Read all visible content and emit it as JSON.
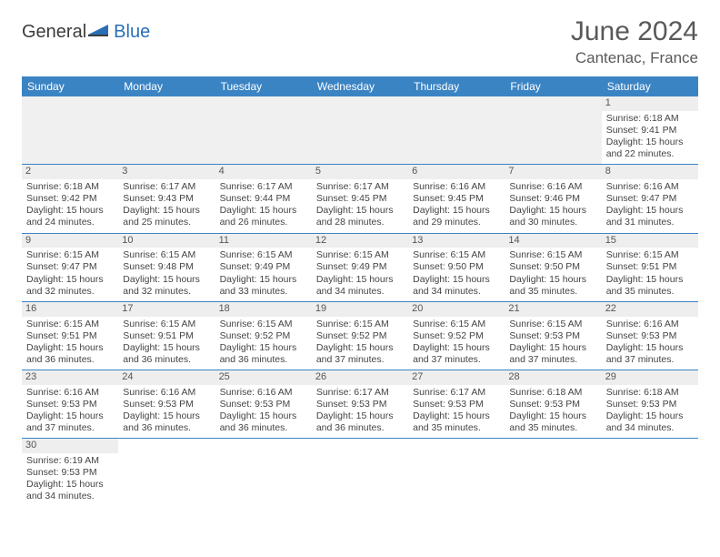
{
  "logo": {
    "text1": "General",
    "text2": "Blue"
  },
  "title": "June 2024",
  "location": "Cantenac, France",
  "colors": {
    "header_bg": "#3b84c4",
    "header_text": "#ffffff",
    "daynum_bg": "#eeeeee",
    "border": "#3b84c4",
    "title_color": "#595959",
    "logo_blue": "#2a6fb5"
  },
  "weekdays": [
    "Sunday",
    "Monday",
    "Tuesday",
    "Wednesday",
    "Thursday",
    "Friday",
    "Saturday"
  ],
  "days": {
    "1": {
      "sunrise": "6:18 AM",
      "sunset": "9:41 PM",
      "daylight": "15 hours and 22 minutes."
    },
    "2": {
      "sunrise": "6:18 AM",
      "sunset": "9:42 PM",
      "daylight": "15 hours and 24 minutes."
    },
    "3": {
      "sunrise": "6:17 AM",
      "sunset": "9:43 PM",
      "daylight": "15 hours and 25 minutes."
    },
    "4": {
      "sunrise": "6:17 AM",
      "sunset": "9:44 PM",
      "daylight": "15 hours and 26 minutes."
    },
    "5": {
      "sunrise": "6:17 AM",
      "sunset": "9:45 PM",
      "daylight": "15 hours and 28 minutes."
    },
    "6": {
      "sunrise": "6:16 AM",
      "sunset": "9:45 PM",
      "daylight": "15 hours and 29 minutes."
    },
    "7": {
      "sunrise": "6:16 AM",
      "sunset": "9:46 PM",
      "daylight": "15 hours and 30 minutes."
    },
    "8": {
      "sunrise": "6:16 AM",
      "sunset": "9:47 PM",
      "daylight": "15 hours and 31 minutes."
    },
    "9": {
      "sunrise": "6:15 AM",
      "sunset": "9:47 PM",
      "daylight": "15 hours and 32 minutes."
    },
    "10": {
      "sunrise": "6:15 AM",
      "sunset": "9:48 PM",
      "daylight": "15 hours and 32 minutes."
    },
    "11": {
      "sunrise": "6:15 AM",
      "sunset": "9:49 PM",
      "daylight": "15 hours and 33 minutes."
    },
    "12": {
      "sunrise": "6:15 AM",
      "sunset": "9:49 PM",
      "daylight": "15 hours and 34 minutes."
    },
    "13": {
      "sunrise": "6:15 AM",
      "sunset": "9:50 PM",
      "daylight": "15 hours and 34 minutes."
    },
    "14": {
      "sunrise": "6:15 AM",
      "sunset": "9:50 PM",
      "daylight": "15 hours and 35 minutes."
    },
    "15": {
      "sunrise": "6:15 AM",
      "sunset": "9:51 PM",
      "daylight": "15 hours and 35 minutes."
    },
    "16": {
      "sunrise": "6:15 AM",
      "sunset": "9:51 PM",
      "daylight": "15 hours and 36 minutes."
    },
    "17": {
      "sunrise": "6:15 AM",
      "sunset": "9:51 PM",
      "daylight": "15 hours and 36 minutes."
    },
    "18": {
      "sunrise": "6:15 AM",
      "sunset": "9:52 PM",
      "daylight": "15 hours and 36 minutes."
    },
    "19": {
      "sunrise": "6:15 AM",
      "sunset": "9:52 PM",
      "daylight": "15 hours and 37 minutes."
    },
    "20": {
      "sunrise": "6:15 AM",
      "sunset": "9:52 PM",
      "daylight": "15 hours and 37 minutes."
    },
    "21": {
      "sunrise": "6:15 AM",
      "sunset": "9:53 PM",
      "daylight": "15 hours and 37 minutes."
    },
    "22": {
      "sunrise": "6:16 AM",
      "sunset": "9:53 PM",
      "daylight": "15 hours and 37 minutes."
    },
    "23": {
      "sunrise": "6:16 AM",
      "sunset": "9:53 PM",
      "daylight": "15 hours and 37 minutes."
    },
    "24": {
      "sunrise": "6:16 AM",
      "sunset": "9:53 PM",
      "daylight": "15 hours and 36 minutes."
    },
    "25": {
      "sunrise": "6:16 AM",
      "sunset": "9:53 PM",
      "daylight": "15 hours and 36 minutes."
    },
    "26": {
      "sunrise": "6:17 AM",
      "sunset": "9:53 PM",
      "daylight": "15 hours and 36 minutes."
    },
    "27": {
      "sunrise": "6:17 AM",
      "sunset": "9:53 PM",
      "daylight": "15 hours and 35 minutes."
    },
    "28": {
      "sunrise": "6:18 AM",
      "sunset": "9:53 PM",
      "daylight": "15 hours and 35 minutes."
    },
    "29": {
      "sunrise": "6:18 AM",
      "sunset": "9:53 PM",
      "daylight": "15 hours and 34 minutes."
    },
    "30": {
      "sunrise": "6:19 AM",
      "sunset": "9:53 PM",
      "daylight": "15 hours and 34 minutes."
    }
  },
  "labels": {
    "sunrise": "Sunrise: ",
    "sunset": "Sunset: ",
    "daylight": "Daylight: "
  },
  "layout": {
    "startOffset": 6,
    "numDays": 30
  }
}
